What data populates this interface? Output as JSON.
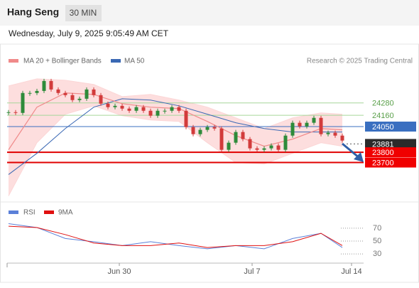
{
  "header": {
    "title": "Hang Seng",
    "timeframe": "30 MIN",
    "timestamp": "Wednesday, July 9, 2025 9:05:49 AM CET"
  },
  "chart_data": [
    {
      "type": "candlestick",
      "source": "Research © 2025 Trading Central",
      "xlim": [
        -0.2,
        50
      ],
      "ylim": [
        23330,
        24590
      ],
      "x": [
        0,
        1,
        2,
        3,
        4,
        5,
        6,
        7,
        8,
        9,
        10,
        11,
        12,
        13,
        14,
        15,
        16,
        17,
        18,
        19,
        20,
        21,
        22,
        23,
        24,
        25,
        26,
        27,
        28,
        29,
        30,
        31,
        32,
        33,
        34,
        35,
        36,
        37,
        38,
        39,
        40,
        41,
        42,
        43,
        44,
        45,
        46,
        47
      ],
      "close": [
        24190,
        24183,
        24377,
        24377,
        24397,
        24494,
        24411,
        24377,
        24356,
        24308,
        24321,
        24411,
        24356,
        24273,
        24239,
        24252,
        24225,
        24204,
        24239,
        24204,
        24156,
        24204,
        24204,
        24239,
        24204,
        24045,
        23976,
        24018,
        24045,
        24031,
        23824,
        23893,
        23997,
        23928,
        23838,
        23824,
        23838,
        23866,
        23824,
        23962,
        24087,
        24052,
        24087,
        24135,
        23976,
        23990,
        23962,
        23914
      ],
      "up_color": "#2e8b3a",
      "down_color": "#d23b3b",
      "ma_x": [
        0,
        4,
        8,
        12,
        16,
        20,
        24,
        28,
        32,
        36,
        40,
        44,
        47
      ],
      "ma20": {
        "name": "MA 20 + Bollinger Bands",
        "color": "#f08a8a",
        "band_color": "#fcd6d6",
        "values": [
          23824,
          24239,
          24377,
          24363,
          24273,
          24239,
          24225,
          24100,
          23962,
          23859,
          23928,
          24031,
          24018
        ],
        "upper": [
          24446,
          24515,
          24501,
          24460,
          24342,
          24363,
          24308,
          24239,
          24135,
          24031,
          24135,
          24183,
          24170
        ],
        "lower": [
          23375,
          23893,
          24170,
          24252,
          24156,
          24114,
          24100,
          23893,
          23700,
          23686,
          23790,
          23893,
          23859
        ]
      },
      "ma50": {
        "name": "MA 50",
        "color": "#3a68b4",
        "values": [
          23583,
          23790,
          24031,
          24239,
          24321,
          24308,
          24252,
          24170,
          24087,
          24031,
          23997,
          23997,
          23997
        ]
      },
      "levels": [
        {
          "value": 24280,
          "color": "#a6d69a",
          "width": 1,
          "dash": false,
          "label_fill": "#ffffff",
          "label_color": "#5aa04a"
        },
        {
          "value": 24160,
          "color": "#a6d69a",
          "width": 1,
          "dash": false,
          "label_fill": "#ffffff",
          "label_color": "#5aa04a"
        },
        {
          "value": 24050,
          "color": "#3a6fc0",
          "width": 1,
          "dash": false,
          "label_fill": "#3a6fc0",
          "label_color": "#ffffff"
        },
        {
          "value": 23881,
          "color": "#555555",
          "width": 1,
          "dash": true,
          "label_fill": "#2b2b2b",
          "label_color": "#ffffff"
        },
        {
          "value": 23800,
          "color": "#e00000",
          "width": 2,
          "dash": false,
          "label_fill": "#f00000",
          "label_color": "#ffffff"
        },
        {
          "value": 23700,
          "color": "#e00000",
          "width": 2,
          "dash": false,
          "label_fill": "#f00000",
          "label_color": "#ffffff"
        }
      ]
    },
    {
      "type": "line",
      "xlim": [
        -0.2,
        50
      ],
      "ylim": [
        18,
        82
      ],
      "yticks": [
        30,
        50,
        70
      ],
      "xticks": [
        {
          "value": 15.6,
          "label": "Jun 30"
        },
        {
          "value": 34.3,
          "label": "Jul 7"
        },
        {
          "value": 48.3,
          "label": "Jul 14"
        }
      ],
      "x": [
        0,
        4,
        8,
        12,
        16,
        20,
        24,
        28,
        32,
        36,
        40,
        44,
        47
      ],
      "series": [
        {
          "name": "RSI",
          "color": "#5b80d8",
          "values": [
            77,
            71,
            54,
            49,
            43,
            49,
            43,
            38,
            43,
            38,
            54,
            62,
            40
          ]
        },
        {
          "name": "9MA",
          "color": "#e01010",
          "values": [
            73,
            71,
            60,
            47,
            43,
            43,
            47,
            40,
            43,
            43,
            49,
            62,
            43
          ]
        }
      ]
    }
  ]
}
